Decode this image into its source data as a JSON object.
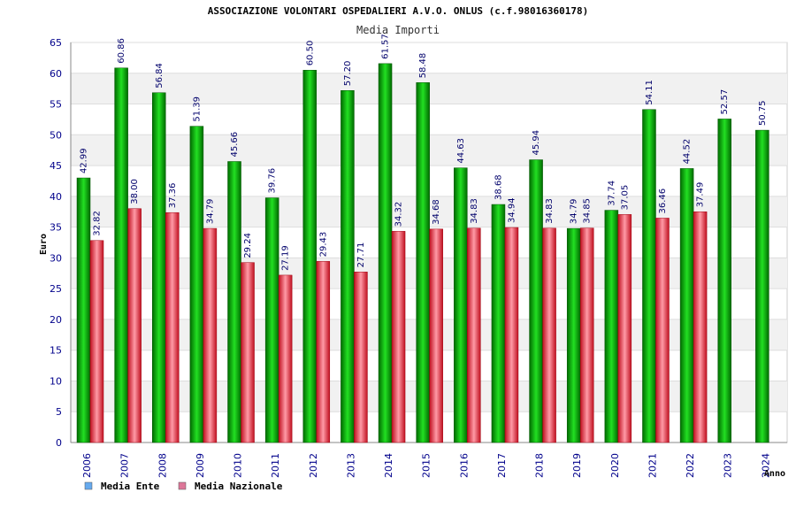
{
  "chart_data": {
    "type": "bar",
    "title": "ASSOCIAZIONE VOLONTARI OSPEDALIERI A.V.O. ONLUS (c.f.98016360178)",
    "subtitle": "Media Importi",
    "xlabel": "Anno",
    "ylabel": "Euro",
    "ylim": [
      0,
      65
    ],
    "yticks": [
      0,
      5,
      10,
      15,
      20,
      25,
      30,
      35,
      40,
      45,
      50,
      55,
      60,
      65
    ],
    "grid": true,
    "legend_position": "bottom-left",
    "categories": [
      "2006",
      "2007",
      "2008",
      "2009",
      "2010",
      "2011",
      "2012",
      "2013",
      "2014",
      "2015",
      "2016",
      "2017",
      "2018",
      "2019",
      "2020",
      "2021",
      "2022",
      "2023",
      "2024"
    ],
    "series": [
      {
        "name": "Media Ente",
        "color": "#00b000",
        "legend_color": "#66aaee",
        "values": [
          42.99,
          60.86,
          56.84,
          51.39,
          45.66,
          39.76,
          60.5,
          57.2,
          61.57,
          58.48,
          44.63,
          38.68,
          45.94,
          34.79,
          37.74,
          54.11,
          44.52,
          52.57,
          50.75
        ],
        "labels": [
          "42.99",
          "60.86",
          "56.84",
          "51.39",
          "45.66",
          "39.76",
          "60.50",
          "57.20",
          "61.57",
          "58.48",
          "44.63",
          "38.68",
          "45.94",
          "34.79",
          "37.74",
          "54.11",
          "44.52",
          "52.57",
          "50.75"
        ]
      },
      {
        "name": "Media Nazionale",
        "color": "#e03040",
        "legend_color": "#dd7799",
        "values": [
          32.82,
          38.0,
          37.36,
          34.79,
          29.24,
          27.19,
          29.43,
          27.71,
          34.32,
          34.68,
          34.83,
          34.94,
          34.83,
          34.85,
          37.05,
          36.46,
          37.49,
          null,
          null
        ],
        "labels": [
          "32.82",
          "38.00",
          "37.36",
          "34.79",
          "29.24",
          "27.19",
          "29.43",
          "27.71",
          "34.32",
          "34.68",
          "34.83",
          "34.94",
          "34.83",
          "34.85",
          "37.05",
          "36.46",
          "37.49",
          null,
          null
        ]
      }
    ]
  }
}
